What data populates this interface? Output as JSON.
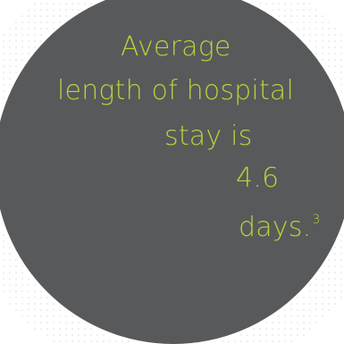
{
  "infographic": {
    "lines": [
      "Average",
      "length of hospital",
      "stay is",
      "4.6",
      "days."
    ],
    "footnote": "3",
    "gauge_value_days": 4.6
  },
  "colors": {
    "background": "#ffffff",
    "disc": "#58595b",
    "dial_face": "#d1d2d4",
    "highlight_sector": "#4d9aa6",
    "ticks": "#121212",
    "text_accent": "#b5d43a",
    "dot_pattern": "#d9dbe0"
  }
}
